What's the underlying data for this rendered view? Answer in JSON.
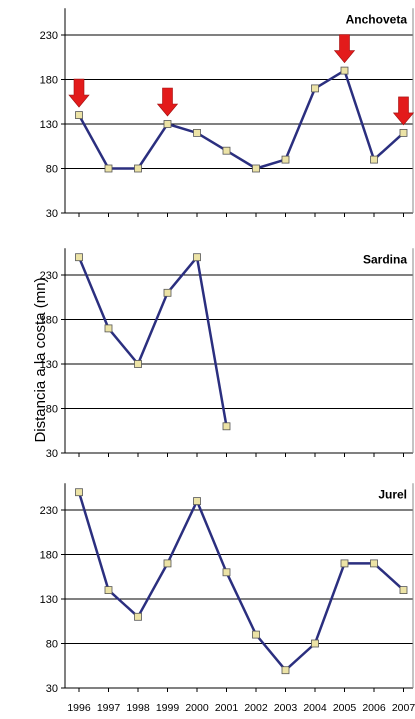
{
  "chart_data": [
    {
      "type": "line",
      "title": "Anchoveta",
      "x": [
        "1996",
        "1997",
        "1998",
        "1999",
        "2000",
        "2001",
        "2002",
        "2003",
        "2004",
        "2005",
        "2006",
        "2007"
      ],
      "values": [
        140,
        80,
        80,
        130,
        120,
        100,
        80,
        90,
        170,
        190,
        90,
        120
      ],
      "yticks": [
        30,
        80,
        130,
        180,
        230
      ],
      "ylim": [
        30,
        260
      ],
      "grid": true,
      "arrows": [
        "1996",
        "1999",
        "2005",
        "2007"
      ]
    },
    {
      "type": "line",
      "title": "Sardina",
      "x": [
        "1996",
        "1997",
        "1998",
        "1999",
        "2000",
        "2001"
      ],
      "values": [
        250,
        170,
        130,
        210,
        250,
        60
      ],
      "yticks": [
        30,
        80,
        130,
        180,
        230
      ],
      "ylim": [
        30,
        260
      ],
      "grid": true
    },
    {
      "type": "line",
      "title": "Jurel",
      "x": [
        "1996",
        "1997",
        "1998",
        "1999",
        "2000",
        "2001",
        "2002",
        "2003",
        "2004",
        "2005",
        "2006",
        "2007"
      ],
      "values": [
        250,
        140,
        110,
        170,
        240,
        160,
        90,
        50,
        80,
        170,
        170,
        140
      ],
      "yticks": [
        30,
        80,
        130,
        180,
        230
      ],
      "ylim": [
        30,
        260
      ],
      "grid": true
    }
  ],
  "ylabel": "Distancia a la costa (mn)",
  "xticks": [
    "1996",
    "1997",
    "1998",
    "1999",
    "2000",
    "2001",
    "2002",
    "2003",
    "2004",
    "2005",
    "2006",
    "2007"
  ],
  "colors": {
    "line": "#2b2f7f",
    "marker_fill": "#ece3a6",
    "marker_stroke": "#555555",
    "arrow": "#e31b1b",
    "axis": "#000000"
  }
}
